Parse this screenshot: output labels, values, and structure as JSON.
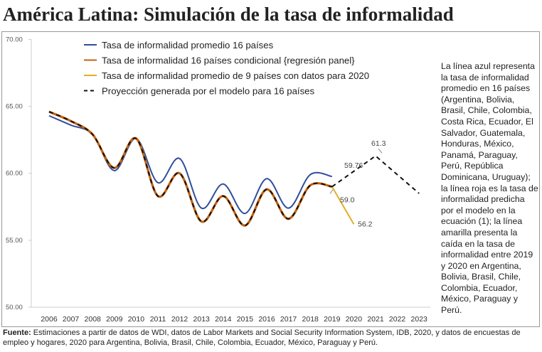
{
  "title": "América Latina: Simulación de la tasa de informalidad",
  "note": "La línea azul representa la tasa de informalidad promedio en 16 países (Argentina, Bolivia, Brasil, Chile, Colombia, Costa Rica, Ecuador, El Salvador, Guatemala, Honduras, México, Panamá, Paraguay, Perú, República Dominicana, Uruguay); la línea roja es la tasa de informalidad predicha por el modelo en la ecuación (1); la línea amarilla presenta la caída en la tasa de informalidad entre 2019 y 2020 en Argentina, Bolivia, Brasil, Chile, Colombia, Ecuador, México, Paraguay y Perú.",
  "source": {
    "label": "Fuente:",
    "text": " Estimaciones a partir de datos de WDI, datos de Labor Markets and Social Security Information System, IDB, 2020, y datos de encuestas de empleo y hogares, 2020 para Argentina, Bolivia, Brasil, Chile, Colombia, Ecuador, México, Paraguay y Perú."
  },
  "chart_data": {
    "type": "line",
    "title": "",
    "xlabel": "",
    "ylabel": "",
    "ylim": [
      50,
      70
    ],
    "yticks": [
      "50.00",
      "55.00",
      "60.00",
      "65.00",
      "70.00"
    ],
    "x": [
      2006,
      2007,
      2008,
      2009,
      2010,
      2011,
      2012,
      2013,
      2014,
      2015,
      2016,
      2017,
      2018,
      2019,
      2020,
      2021,
      2022,
      2023
    ],
    "legend_position": "top-left",
    "series": [
      {
        "name": "Tasa de informalidad promedio 16 países",
        "color": "#2f4e9c",
        "style": "solid",
        "x": [
          2006,
          2007,
          2008,
          2009,
          2010,
          2011,
          2012,
          2013,
          2014,
          2015,
          2016,
          2017,
          2018,
          2019
        ],
        "values": [
          64.3,
          63.6,
          62.9,
          60.2,
          62.6,
          59.3,
          61.1,
          57.4,
          59.2,
          57.0,
          59.6,
          57.4,
          59.9,
          59.76
        ]
      },
      {
        "name": "Tasa de informalidad 16 países condicional {regresión panel}",
        "color": "#c6620f",
        "style": "solid",
        "x": [
          2006,
          2007,
          2008,
          2009,
          2010,
          2011,
          2012,
          2013,
          2014,
          2015,
          2016,
          2017,
          2018,
          2019
        ],
        "values": [
          64.6,
          63.9,
          62.9,
          60.4,
          62.6,
          58.3,
          60.0,
          56.4,
          58.3,
          56.1,
          58.8,
          56.6,
          59.1,
          59.0
        ]
      },
      {
        "name": "Tasa de informalidad promedio de 9 países con datos para 2020",
        "color": "#e3ae25",
        "style": "solid",
        "x": [
          2019,
          2020
        ],
        "values": [
          59.0,
          56.2
        ]
      },
      {
        "name": "Proyección generada por el modelo para 16 países",
        "color": "#111111",
        "style": "dashed",
        "x": [
          2006,
          2007,
          2008,
          2009,
          2010,
          2011,
          2012,
          2013,
          2014,
          2015,
          2016,
          2017,
          2018,
          2019,
          2021,
          2023
        ],
        "values": [
          64.6,
          63.9,
          62.9,
          60.4,
          62.6,
          58.3,
          60.0,
          56.4,
          58.3,
          56.1,
          58.8,
          56.6,
          59.1,
          59.0,
          61.3,
          58.5
        ]
      }
    ],
    "annotations": [
      "59.76",
      "59.0",
      "56.2",
      "61.3"
    ]
  }
}
